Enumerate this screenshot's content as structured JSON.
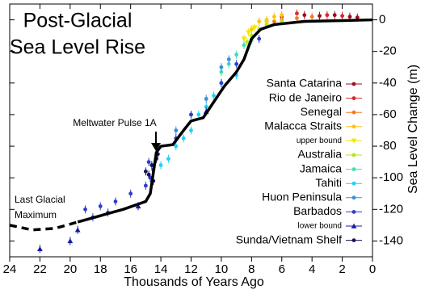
{
  "chart_data": {
    "type": "scatter",
    "title": [
      "Post-Glacial",
      "Sea Level Rise"
    ],
    "x_label": "Thousands of Years Ago",
    "y_label": "Sea Level Change (m)",
    "annotations": [
      {
        "lines": [
          "Meltwater Pulse 1A"
        ],
        "arrow": true
      },
      {
        "lines": [
          "Last Glacial",
          "Maximum"
        ],
        "arrow": false
      }
    ],
    "xlim": [
      24,
      0
    ],
    "ylim": [
      -150,
      10
    ],
    "xticks": [
      24,
      22,
      20,
      18,
      16,
      14,
      12,
      10,
      8,
      6,
      4,
      2,
      0
    ],
    "yticks": [
      0,
      -20,
      -40,
      -60,
      -80,
      -100,
      -120,
      -140
    ],
    "fit_lines": [
      {
        "style": "dashed",
        "color": "#000000",
        "x": [
          24,
          22.5,
          21,
          19.5
        ],
        "values": [
          -130,
          -133,
          -132,
          -128
        ]
      },
      {
        "style": "solid",
        "color": "#000000",
        "x": [
          19.5,
          18,
          16.5,
          15,
          14.7,
          14.3,
          14,
          13.2,
          12.5,
          12,
          11.2,
          10.5,
          9.8,
          9,
          8.5,
          8,
          7.4,
          6.5,
          4.5,
          2,
          0
        ],
        "values": [
          -128,
          -124,
          -120,
          -115,
          -110,
          -84,
          -80,
          -79,
          -70,
          -64,
          -62,
          -52,
          -42,
          -33,
          -25,
          -12,
          -6,
          -3,
          -1,
          -0.5,
          0
        ]
      }
    ],
    "series": [
      {
        "name": "Santa Catarina",
        "color": "#9b0f1e",
        "marker": "circle",
        "x": [
          1.5,
          2.5,
          3.5,
          1,
          4.5
        ],
        "values": [
          2,
          3,
          2.5,
          1.5,
          3
        ]
      },
      {
        "name": "Rio de Janeiro",
        "color": "#d8262a",
        "marker": "circle",
        "x": [
          3,
          5,
          6,
          2
        ],
        "values": [
          3,
          4,
          2,
          2.5
        ]
      },
      {
        "name": "Senegal",
        "color": "#f47a20",
        "marker": "circle",
        "x": [
          5,
          6,
          7,
          6.5,
          4
        ],
        "values": [
          1,
          0,
          -3,
          -1,
          2
        ]
      },
      {
        "name": "Malacca Straits",
        "color": "#ffc20e",
        "marker": "circle",
        "x": [
          6.5,
          7,
          7.5,
          6,
          8
        ],
        "values": [
          2,
          0,
          -1,
          3,
          -6
        ]
      },
      {
        "name": "upper bound",
        "color": "#f5e400",
        "marker": "triangle-down",
        "x": [
          7.8,
          8.2,
          7,
          8.5
        ],
        "values": [
          -5,
          -8,
          -2,
          -12
        ]
      },
      {
        "name": "Australia",
        "color": "#b5e61d",
        "marker": "circle",
        "x": [
          7,
          7.5,
          8,
          8.3,
          6
        ],
        "values": [
          -3,
          -6,
          -10,
          -14,
          -1
        ]
      },
      {
        "name": "Jamaica",
        "color": "#3fe0b0",
        "marker": "circle",
        "x": [
          8.5,
          9,
          9.5,
          10,
          8
        ],
        "values": [
          -16,
          -22,
          -28,
          -33,
          -13
        ]
      },
      {
        "name": "Tahiti",
        "color": "#1ed2f5",
        "marker": "circle",
        "x": [
          10,
          11,
          11.5,
          12,
          12.5,
          13,
          13.5,
          14,
          10.5,
          9
        ],
        "values": [
          -40,
          -55,
          -60,
          -70,
          -75,
          -80,
          -88,
          -92,
          -48,
          -35
        ]
      },
      {
        "name": "Huon Peninsula",
        "color": "#3a8fd8",
        "marker": "circle",
        "x": [
          11,
          12,
          9.5,
          10,
          13
        ],
        "values": [
          -50,
          -60,
          -25,
          -30,
          -70
        ]
      },
      {
        "name": "Barbados",
        "color": "#2b3fcf",
        "marker": "circle",
        "x": [
          14.5,
          14.7,
          15,
          16,
          17,
          18,
          19,
          13,
          12,
          10,
          9,
          7.5,
          14.8,
          18.5,
          17.5
        ],
        "values": [
          -95,
          -100,
          -105,
          -110,
          -115,
          -118,
          -120,
          -75,
          -60,
          -40,
          -28,
          -12,
          -90,
          -125,
          -122
        ]
      },
      {
        "name": "lower bound",
        "color": "#1a1aa6",
        "marker": "triangle-up",
        "x": [
          22,
          20,
          19.5,
          15.5,
          11
        ],
        "values": [
          -145,
          -140,
          -133,
          -118,
          -58
        ]
      },
      {
        "name": "Sunda/Vietnam Shelf",
        "color": "#14145a",
        "marker": "circle",
        "x": [
          14.3,
          14.6,
          14.8,
          15,
          14.5,
          14.2
        ],
        "values": [
          -88,
          -92,
          -98,
          -96,
          -102,
          -85
        ]
      }
    ]
  }
}
